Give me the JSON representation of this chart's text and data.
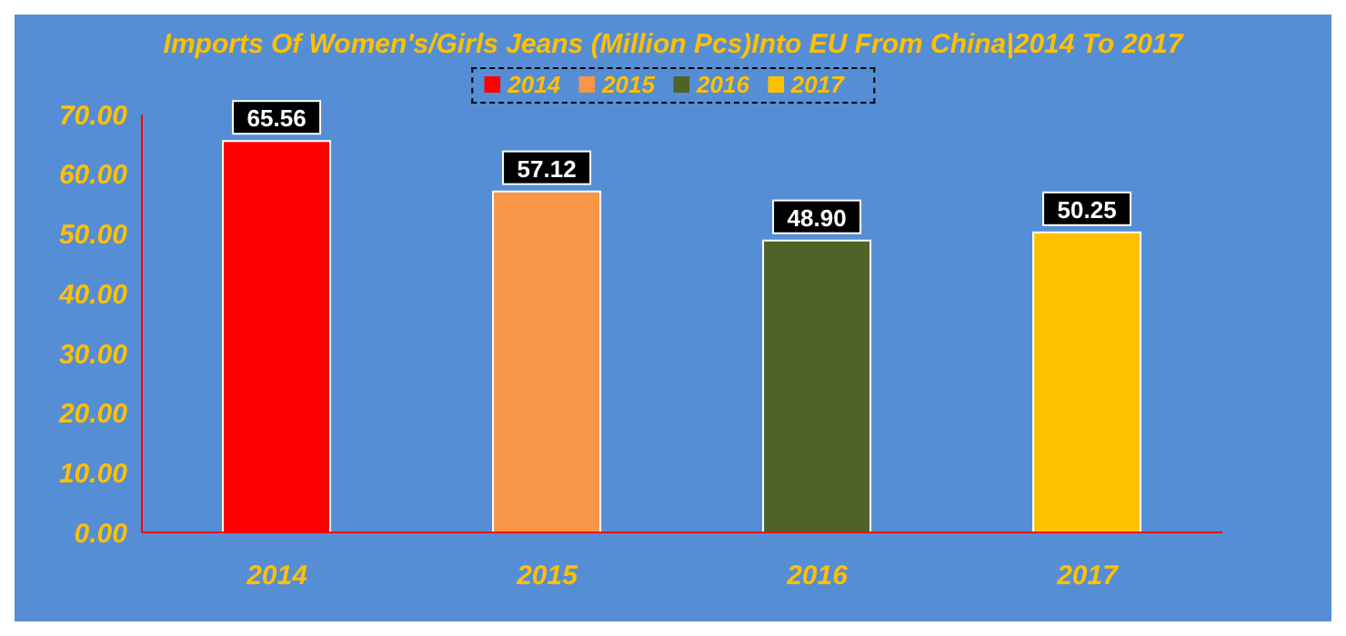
{
  "chart_data": {
    "type": "bar",
    "title": "Imports Of Women's/Girls Jeans (Million Pcs)Into EU From China|2014 To 2017",
    "categories": [
      "2014",
      "2015",
      "2016",
      "2017"
    ],
    "stacked": true,
    "series": [
      {
        "name": "2014",
        "color": "#ff0000",
        "values": [
          65.56,
          null,
          null,
          null
        ],
        "value_labels": [
          "65.56",
          null,
          null,
          null
        ]
      },
      {
        "name": "2015",
        "color": "#f79646",
        "values": [
          null,
          57.12,
          null,
          null
        ],
        "value_labels": [
          null,
          "57.12",
          null,
          null
        ]
      },
      {
        "name": "2016",
        "color": "#4f6228",
        "values": [
          null,
          null,
          48.9,
          null
        ],
        "value_labels": [
          null,
          null,
          "48.90",
          null
        ]
      },
      {
        "name": "2017",
        "color": "#ffc000",
        "values": [
          null,
          null,
          null,
          50.25
        ],
        "value_labels": [
          null,
          null,
          null,
          "50.25"
        ]
      }
    ],
    "ylim": [
      0,
      70
    ],
    "yticks": [
      {
        "value": 0,
        "label": "0.00"
      },
      {
        "value": 10,
        "label": "10.00"
      },
      {
        "value": 20,
        "label": "20.00"
      },
      {
        "value": 30,
        "label": "30.00"
      },
      {
        "value": 40,
        "label": "40.00"
      },
      {
        "value": 50,
        "label": "50.00"
      },
      {
        "value": 60,
        "label": "60.00"
      },
      {
        "value": 70,
        "label": "70.00"
      }
    ],
    "legend": "top",
    "grid": false
  }
}
